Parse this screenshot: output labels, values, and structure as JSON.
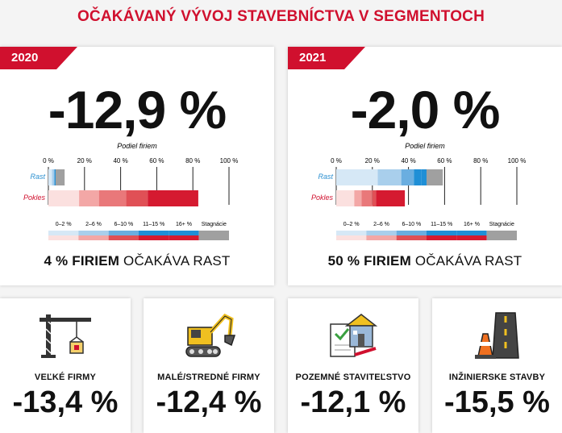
{
  "title": "OČAKÁVANÝ VÝVOJ STAVEBNÍCTVA V SEGMENTOCH",
  "colors": {
    "accent": "#d0102e",
    "rast": [
      "#d6e8f6",
      "#a9cfec",
      "#6aaee0",
      "#1f8fd6"
    ],
    "pokles": [
      "#fbe0df",
      "#f3a7a6",
      "#e9787a",
      "#e05056",
      "#d51a30"
    ],
    "stagnacie": "#a0a0a0"
  },
  "chart_data": [
    {
      "type": "bar",
      "year": "2020",
      "headline": "-12,9 %",
      "axis_title": "Podiel firiem",
      "ticks": [
        "0 %",
        "20 %",
        "40 %",
        "60 %",
        "80 %",
        "100 %"
      ],
      "xlim": [
        0,
        100
      ],
      "categories": [
        "Rast",
        "Pokles"
      ],
      "series": [
        {
          "name": "0–2 %",
          "values": [
            2,
            17
          ]
        },
        {
          "name": "2–6 %",
          "values": [
            1,
            11
          ]
        },
        {
          "name": "6–10 %",
          "values": [
            0.5,
            15
          ]
        },
        {
          "name": "11–15 %",
          "values": [
            0.5,
            12
          ]
        },
        {
          "name": "16+ %",
          "values": [
            0,
            28
          ]
        },
        {
          "name": "Stagnácie",
          "values": [
            5,
            0
          ]
        }
      ],
      "legend": [
        "0–2 %",
        "2–6 %",
        "6–10 %",
        "11–15 %",
        "16+ %",
        "Stagnácie"
      ],
      "footer_bold": "4 % FIRIEM",
      "footer_rest": " OČAKÁVA RAST"
    },
    {
      "type": "bar",
      "year": "2021",
      "headline": "-2,0 %",
      "axis_title": "Podiel firiem",
      "ticks": [
        "0 %",
        "20 %",
        "40 %",
        "60 %",
        "80 %",
        "100 %"
      ],
      "xlim": [
        0,
        100
      ],
      "categories": [
        "Rast",
        "Pokles"
      ],
      "series": [
        {
          "name": "0–2 %",
          "values": [
            23,
            10
          ]
        },
        {
          "name": "2–6 %",
          "values": [
            13,
            4
          ]
        },
        {
          "name": "6–10 %",
          "values": [
            7,
            6
          ]
        },
        {
          "name": "11–15 %",
          "values": [
            4,
            2
          ]
        },
        {
          "name": "16+ %",
          "values": [
            3,
            16
          ]
        },
        {
          "name": "Stagnácie",
          "values": [
            9,
            0
          ]
        }
      ],
      "legend": [
        "0–2 %",
        "2–6 %",
        "6–10 %",
        "11–15 %",
        "16+ %",
        "Stagnácie"
      ],
      "footer_bold": "50 % FIRIEM",
      "footer_rest": " OČAKÁVA RAST"
    }
  ],
  "segments": [
    {
      "icon": "crane-icon",
      "label": "VEĽKÉ FIRMY",
      "value": "-13,4 %"
    },
    {
      "icon": "excavator-icon",
      "label": "MALÉ/STREDNÉ FIRMY",
      "value": "-12,4 %"
    },
    {
      "icon": "house-blueprint-icon",
      "label": "POZEMNÉ STAVITEĽSTVO",
      "value": "-12,1 %"
    },
    {
      "icon": "road-cone-icon",
      "label": "INŽINIERSKE STAVBY",
      "value": "-15,5 %"
    }
  ]
}
